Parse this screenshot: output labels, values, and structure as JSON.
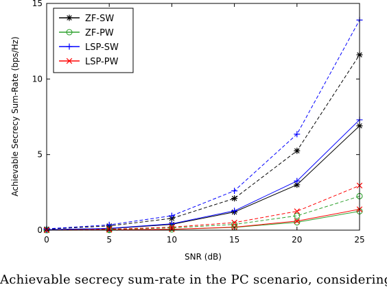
{
  "chart_data": {
    "type": "line",
    "xlabel": "SNR (dB)",
    "ylabel": "Achievable Secrecy Sum-Rate (bps/Hz)",
    "xlim": [
      0,
      25
    ],
    "ylim": [
      0,
      15
    ],
    "xticks": [
      0,
      5,
      10,
      15,
      20,
      25
    ],
    "yticks": [
      0,
      5,
      10,
      15
    ],
    "x": [
      0,
      5,
      10,
      15,
      20,
      25
    ],
    "grid": false,
    "legend_position": "top-left",
    "series": [
      {
        "group": "A",
        "legend": true,
        "name": "ZF-SW",
        "color": "#000000",
        "marker": "star",
        "dash": "solid",
        "values": [
          0.02,
          0.1,
          0.38,
          1.2,
          3.0,
          6.9
        ]
      },
      {
        "group": "B",
        "legend": true,
        "name": "ZF-PW",
        "color": "#2ca02c",
        "marker": "circle",
        "dash": "solid",
        "values": [
          0.0,
          0.01,
          0.05,
          0.18,
          0.52,
          1.25
        ]
      },
      {
        "group": "C",
        "legend": true,
        "name": "LSP-SW",
        "color": "#0000ff",
        "marker": "plus",
        "dash": "solid",
        "values": [
          0.03,
          0.12,
          0.42,
          1.28,
          3.25,
          7.3
        ]
      },
      {
        "group": "D",
        "legend": true,
        "name": "LSP-PW",
        "color": "#ff0000",
        "marker": "cross",
        "dash": "solid",
        "values": [
          0.0,
          0.02,
          0.06,
          0.2,
          0.6,
          1.38
        ]
      },
      {
        "group": "A",
        "legend": false,
        "color": "#000000",
        "marker": "star",
        "dash": "dashed",
        "values": [
          0.07,
          0.28,
          0.78,
          2.1,
          5.25,
          11.6
        ]
      },
      {
        "group": "B",
        "legend": false,
        "color": "#2ca02c",
        "marker": "circle",
        "dash": "dashed",
        "values": [
          0.0,
          0.04,
          0.15,
          0.38,
          0.95,
          2.25
        ]
      },
      {
        "group": "C",
        "legend": false,
        "color": "#0000ff",
        "marker": "plus",
        "dash": "dashed",
        "values": [
          0.09,
          0.35,
          0.95,
          2.6,
          6.35,
          13.9
        ]
      },
      {
        "group": "D",
        "legend": false,
        "color": "#ff0000",
        "marker": "cross",
        "dash": "dashed",
        "values": [
          0.0,
          0.06,
          0.2,
          0.5,
          1.25,
          2.95
        ]
      }
    ]
  },
  "caption": "Achievable secrecy sum-rate in the PC scenario, considering"
}
